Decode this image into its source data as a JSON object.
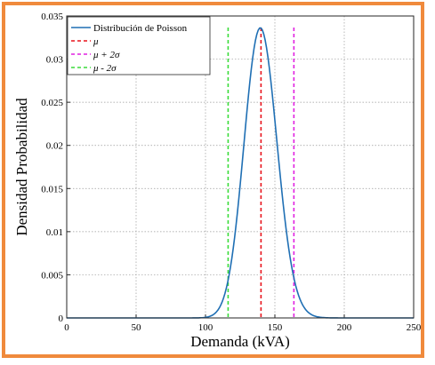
{
  "chart_data": {
    "type": "line",
    "title": "",
    "xlabel": "Demanda (kVA)",
    "ylabel": "Densidad Probabilidad",
    "xlim": [
      0,
      250
    ],
    "ylim": [
      0,
      0.035
    ],
    "xticks": [
      0,
      50,
      100,
      150,
      200,
      250
    ],
    "xtick_labels": [
      "0",
      "50",
      "100",
      "150",
      "200",
      "250"
    ],
    "yticks": [
      0,
      0.005,
      0.01,
      0.015,
      0.02,
      0.025,
      0.03,
      0.035
    ],
    "ytick_labels": [
      "0",
      "0.005",
      "0.01",
      "0.015",
      "0.02",
      "0.025",
      "0.03",
      "0.035"
    ],
    "grid": true,
    "legend_position": "top-left",
    "series": [
      {
        "name": "Distribución de Poisson",
        "kind": "curve",
        "color": "#1f6fb4",
        "mean": 140,
        "peak": 0.0336,
        "x": [
          0,
          30,
          60,
          90,
          100,
          105,
          110,
          115,
          120,
          125,
          130,
          135,
          138,
          140,
          142,
          145,
          150,
          155,
          160,
          165,
          170,
          175,
          180,
          190,
          200,
          250
        ],
        "y": [
          0,
          0,
          0,
          4e-05,
          0.00035,
          0.0009,
          0.002,
          0.0041,
          0.0077,
          0.0128,
          0.0192,
          0.0262,
          0.0309,
          0.0336,
          0.0331,
          0.0306,
          0.0237,
          0.0157,
          0.009,
          0.0045,
          0.0019,
          0.0007,
          0.00022,
          2e-05,
          0,
          0
        ]
      },
      {
        "name": "μ",
        "kind": "vline",
        "x": 140,
        "color": "#e8141c"
      },
      {
        "name": "μ + 2σ",
        "kind": "vline",
        "x": 163.7,
        "color": "#e020e0"
      },
      {
        "name": "μ - 2σ",
        "kind": "vline",
        "x": 116.3,
        "color": "#3adc3a"
      }
    ]
  }
}
